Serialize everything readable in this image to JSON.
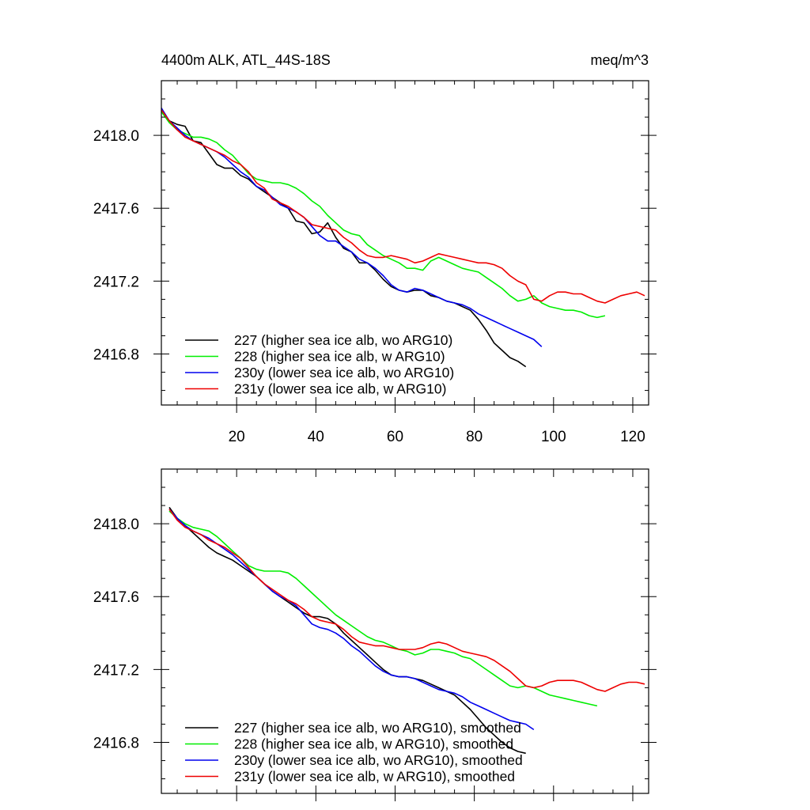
{
  "chart_data": [
    {
      "type": "line",
      "title_left": "4400m ALK, ATL_44S-18S",
      "title_right": "meq/m^3",
      "xlabel": "",
      "ylabel": "",
      "xlim": [
        1,
        124
      ],
      "ylim": [
        2416.52,
        2418.3
      ],
      "xticks": [
        20,
        40,
        60,
        80,
        100,
        120
      ],
      "xtick_labels": [
        "20",
        "40",
        "60",
        "80",
        "100",
        "120"
      ],
      "yticks": [
        2416.8,
        2417.2,
        2417.6,
        2418.0
      ],
      "ytick_labels": [
        "2416.8",
        "2417.2",
        "2417.6",
        "2418.0"
      ],
      "legend_position": "bottom-left",
      "series": [
        {
          "name": "227 (higher sea ice alb, wo ARG10)",
          "color": "#000000",
          "x": [
            1,
            3,
            5,
            7,
            9,
            11,
            13,
            15,
            17,
            19,
            21,
            23,
            25,
            27,
            29,
            31,
            33,
            35,
            37,
            39,
            41,
            43,
            45,
            47,
            49,
            51,
            53,
            55,
            57,
            59,
            61,
            63,
            65,
            67,
            69,
            71,
            73,
            75,
            77,
            79,
            81,
            83,
            85,
            87,
            89,
            91,
            93
          ],
          "y": [
            2418.14,
            2418.08,
            2418.06,
            2418.05,
            2417.97,
            2417.96,
            2417.9,
            2417.84,
            2417.82,
            2417.82,
            2417.78,
            2417.76,
            2417.72,
            2417.69,
            2417.66,
            2417.63,
            2417.6,
            2417.53,
            2417.52,
            2417.46,
            2417.47,
            2417.52,
            2417.44,
            2417.38,
            2417.36,
            2417.3,
            2417.3,
            2417.26,
            2417.21,
            2417.17,
            2417.15,
            2417.14,
            2417.15,
            2417.15,
            2417.12,
            2417.11,
            2417.09,
            2417.08,
            2417.06,
            2417.04,
            2416.99,
            2416.93,
            2416.86,
            2416.82,
            2416.78,
            2416.76,
            2416.73
          ]
        },
        {
          "name": "228 (higher sea ice alb, w ARG10)",
          "color": "#00ee00",
          "x": [
            1,
            3,
            5,
            7,
            9,
            11,
            13,
            15,
            17,
            19,
            21,
            23,
            25,
            27,
            29,
            31,
            33,
            35,
            37,
            39,
            41,
            43,
            45,
            47,
            49,
            51,
            53,
            55,
            57,
            59,
            61,
            63,
            65,
            67,
            69,
            71,
            73,
            75,
            77,
            79,
            81,
            83,
            85,
            87,
            89,
            91,
            93,
            95,
            97,
            99,
            101,
            103,
            105,
            107,
            109,
            111,
            113
          ],
          "y": [
            2418.13,
            2418.07,
            2418.03,
            2418.01,
            2417.99,
            2417.99,
            2417.98,
            2417.96,
            2417.92,
            2417.89,
            2417.84,
            2417.79,
            2417.76,
            2417.75,
            2417.74,
            2417.74,
            2417.73,
            2417.71,
            2417.68,
            2417.64,
            2417.61,
            2417.56,
            2417.52,
            2417.48,
            2417.46,
            2417.45,
            2417.4,
            2417.37,
            2417.34,
            2417.32,
            2417.3,
            2417.27,
            2417.27,
            2417.26,
            2417.31,
            2417.33,
            2417.31,
            2417.29,
            2417.27,
            2417.26,
            2417.25,
            2417.22,
            2417.19,
            2417.16,
            2417.12,
            2417.09,
            2417.1,
            2417.12,
            2417.08,
            2417.06,
            2417.05,
            2417.04,
            2417.04,
            2417.03,
            2417.01,
            2417.0,
            2417.01
          ]
        },
        {
          "name": "230y (lower sea ice alb, wo ARG10)",
          "color": "#0000ee",
          "x": [
            1,
            3,
            5,
            7,
            9,
            11,
            13,
            15,
            17,
            19,
            21,
            23,
            25,
            27,
            29,
            31,
            33,
            35,
            37,
            39,
            41,
            43,
            45,
            47,
            49,
            51,
            53,
            55,
            57,
            59,
            61,
            63,
            65,
            67,
            69,
            71,
            73,
            75,
            77,
            79,
            81,
            83,
            85,
            87,
            89,
            91,
            93,
            95,
            97
          ],
          "y": [
            2418.15,
            2418.08,
            2418.04,
            2418.0,
            2417.97,
            2417.95,
            2417.93,
            2417.91,
            2417.88,
            2417.84,
            2417.8,
            2417.77,
            2417.72,
            2417.7,
            2417.66,
            2417.62,
            2417.6,
            2417.58,
            2417.55,
            2417.5,
            2417.45,
            2417.42,
            2417.42,
            2417.39,
            2417.36,
            2417.32,
            2417.3,
            2417.27,
            2417.23,
            2417.18,
            2417.15,
            2417.14,
            2417.16,
            2417.15,
            2417.13,
            2417.11,
            2417.09,
            2417.08,
            2417.07,
            2417.05,
            2417.02,
            2417.0,
            2416.98,
            2416.96,
            2416.94,
            2416.92,
            2416.9,
            2416.88,
            2416.84
          ]
        },
        {
          "name": "231y (lower sea ice alb, w ARG10)",
          "color": "#ee0000",
          "x": [
            1,
            3,
            5,
            7,
            9,
            11,
            13,
            15,
            17,
            19,
            21,
            23,
            25,
            27,
            29,
            31,
            33,
            35,
            37,
            39,
            41,
            43,
            45,
            47,
            49,
            51,
            53,
            55,
            57,
            59,
            61,
            63,
            65,
            67,
            69,
            71,
            73,
            75,
            77,
            79,
            81,
            83,
            85,
            87,
            89,
            91,
            93,
            95,
            97,
            99,
            101,
            103,
            105,
            107,
            109,
            111,
            113,
            115,
            117,
            119,
            121,
            123
          ],
          "y": [
            2418.14,
            2418.08,
            2418.03,
            2417.99,
            2417.97,
            2417.95,
            2417.93,
            2417.91,
            2417.89,
            2417.86,
            2417.84,
            2417.8,
            2417.74,
            2417.71,
            2417.65,
            2417.63,
            2417.61,
            2417.58,
            2417.55,
            2417.51,
            2417.5,
            2417.49,
            2417.48,
            2417.44,
            2417.41,
            2417.37,
            2417.34,
            2417.33,
            2417.33,
            2417.34,
            2417.33,
            2417.32,
            2417.3,
            2417.31,
            2417.33,
            2417.35,
            2417.34,
            2417.33,
            2417.32,
            2417.31,
            2417.3,
            2417.3,
            2417.29,
            2417.27,
            2417.23,
            2417.2,
            2417.18,
            2417.1,
            2417.09,
            2417.12,
            2417.14,
            2417.14,
            2417.13,
            2417.13,
            2417.11,
            2417.09,
            2417.08,
            2417.1,
            2417.12,
            2417.13,
            2417.14,
            2417.12
          ]
        }
      ]
    },
    {
      "type": "line",
      "title_left": "",
      "title_right": "",
      "xlabel": "",
      "ylabel": "",
      "xlim": [
        1,
        124
      ],
      "ylim": [
        2416.52,
        2418.3
      ],
      "xticks": [
        20,
        40,
        60,
        80,
        100,
        120
      ],
      "xtick_labels": [],
      "yticks": [
        2416.8,
        2417.2,
        2417.6,
        2418.0
      ],
      "ytick_labels": [
        "2416.8",
        "2417.2",
        "2417.6",
        "2418.0"
      ],
      "legend_position": "bottom-left",
      "series": [
        {
          "name": "227 (higher sea ice alb, wo ARG10), smoothed",
          "color": "#000000",
          "x": [
            3,
            5,
            7,
            9,
            11,
            13,
            15,
            17,
            19,
            21,
            23,
            25,
            27,
            29,
            31,
            33,
            35,
            37,
            39,
            41,
            43,
            45,
            47,
            49,
            51,
            53,
            55,
            57,
            59,
            61,
            63,
            65,
            67,
            69,
            71,
            73,
            75,
            77,
            79,
            81,
            83,
            85,
            87,
            89,
            91,
            93
          ],
          "y": [
            2418.09,
            2418.03,
            2417.99,
            2417.95,
            2417.91,
            2417.87,
            2417.84,
            2417.82,
            2417.8,
            2417.77,
            2417.74,
            2417.71,
            2417.67,
            2417.63,
            2417.6,
            2417.57,
            2417.54,
            2417.51,
            2417.49,
            2417.49,
            2417.48,
            2417.45,
            2417.4,
            2417.36,
            2417.32,
            2417.28,
            2417.24,
            2417.2,
            2417.17,
            2417.16,
            2417.16,
            2417.15,
            2417.14,
            2417.12,
            2417.1,
            2417.08,
            2417.06,
            2417.02,
            2416.98,
            2416.93,
            2416.88,
            2416.84,
            2416.8,
            2416.77,
            2416.75,
            2416.74
          ]
        },
        {
          "name": "228 (higher sea ice alb, w ARG10), smoothed",
          "color": "#00ee00",
          "x": [
            3,
            5,
            7,
            9,
            11,
            13,
            15,
            17,
            19,
            21,
            23,
            25,
            27,
            29,
            31,
            33,
            35,
            37,
            39,
            41,
            43,
            45,
            47,
            49,
            51,
            53,
            55,
            57,
            59,
            61,
            63,
            65,
            67,
            69,
            71,
            73,
            75,
            77,
            79,
            81,
            83,
            85,
            87,
            89,
            91,
            93,
            95,
            97,
            99,
            101,
            103,
            105,
            107,
            109,
            111
          ],
          "y": [
            2418.07,
            2418.03,
            2418.0,
            2417.98,
            2417.97,
            2417.96,
            2417.93,
            2417.89,
            2417.85,
            2417.81,
            2417.77,
            2417.75,
            2417.74,
            2417.74,
            2417.74,
            2417.73,
            2417.7,
            2417.66,
            2417.62,
            2417.58,
            2417.54,
            2417.5,
            2417.47,
            2417.44,
            2417.41,
            2417.38,
            2417.36,
            2417.35,
            2417.33,
            2417.31,
            2417.3,
            2417.28,
            2417.29,
            2417.31,
            2417.31,
            2417.3,
            2417.29,
            2417.27,
            2417.26,
            2417.23,
            2417.2,
            2417.17,
            2417.14,
            2417.11,
            2417.1,
            2417.11,
            2417.1,
            2417.08,
            2417.06,
            2417.05,
            2417.04,
            2417.03,
            2417.02,
            2417.01,
            2417.0
          ]
        },
        {
          "name": "230y (lower sea ice alb, wo ARG10), smoothed",
          "color": "#0000ee",
          "x": [
            3,
            5,
            7,
            9,
            11,
            13,
            15,
            17,
            19,
            21,
            23,
            25,
            27,
            29,
            31,
            33,
            35,
            37,
            39,
            41,
            43,
            45,
            47,
            49,
            51,
            53,
            55,
            57,
            59,
            61,
            63,
            65,
            67,
            69,
            71,
            73,
            75,
            77,
            79,
            81,
            83,
            85,
            87,
            89,
            91,
            93,
            95
          ],
          "y": [
            2418.08,
            2418.03,
            2417.99,
            2417.96,
            2417.94,
            2417.92,
            2417.89,
            2417.86,
            2417.83,
            2417.79,
            2417.75,
            2417.71,
            2417.67,
            2417.63,
            2417.6,
            2417.58,
            2417.55,
            2417.5,
            2417.45,
            2417.43,
            2417.42,
            2417.4,
            2417.37,
            2417.33,
            2417.3,
            2417.26,
            2417.22,
            2417.19,
            2417.17,
            2417.16,
            2417.16,
            2417.15,
            2417.13,
            2417.11,
            2417.09,
            2417.08,
            2417.07,
            2417.05,
            2417.02,
            2417.0,
            2416.98,
            2416.96,
            2416.94,
            2416.92,
            2416.91,
            2416.9,
            2416.87
          ]
        },
        {
          "name": "231y (lower sea ice alb, w ARG10), smoothed",
          "color": "#ee0000",
          "x": [
            3,
            5,
            7,
            9,
            11,
            13,
            15,
            17,
            19,
            21,
            23,
            25,
            27,
            29,
            31,
            33,
            35,
            37,
            39,
            41,
            43,
            45,
            47,
            49,
            51,
            53,
            55,
            57,
            59,
            61,
            63,
            65,
            67,
            69,
            71,
            73,
            75,
            77,
            79,
            81,
            83,
            85,
            87,
            89,
            91,
            93,
            95,
            97,
            99,
            101,
            103,
            105,
            107,
            109,
            111,
            113,
            115,
            117,
            119,
            121,
            123
          ],
          "y": [
            2418.08,
            2418.02,
            2417.98,
            2417.96,
            2417.94,
            2417.91,
            2417.89,
            2417.87,
            2417.84,
            2417.81,
            2417.76,
            2417.71,
            2417.67,
            2417.64,
            2417.61,
            2417.58,
            2417.56,
            2417.53,
            2417.49,
            2417.47,
            2417.46,
            2417.45,
            2417.42,
            2417.38,
            2417.35,
            2417.34,
            2417.33,
            2417.33,
            2417.32,
            2417.31,
            2417.31,
            2417.31,
            2417.32,
            2417.34,
            2417.35,
            2417.34,
            2417.32,
            2417.3,
            2417.29,
            2417.28,
            2417.27,
            2417.25,
            2417.22,
            2417.19,
            2417.15,
            2417.11,
            2417.1,
            2417.11,
            2417.13,
            2417.14,
            2417.14,
            2417.14,
            2417.13,
            2417.11,
            2417.09,
            2417.08,
            2417.1,
            2417.12,
            2417.13,
            2417.13,
            2417.12
          ]
        }
      ]
    }
  ]
}
